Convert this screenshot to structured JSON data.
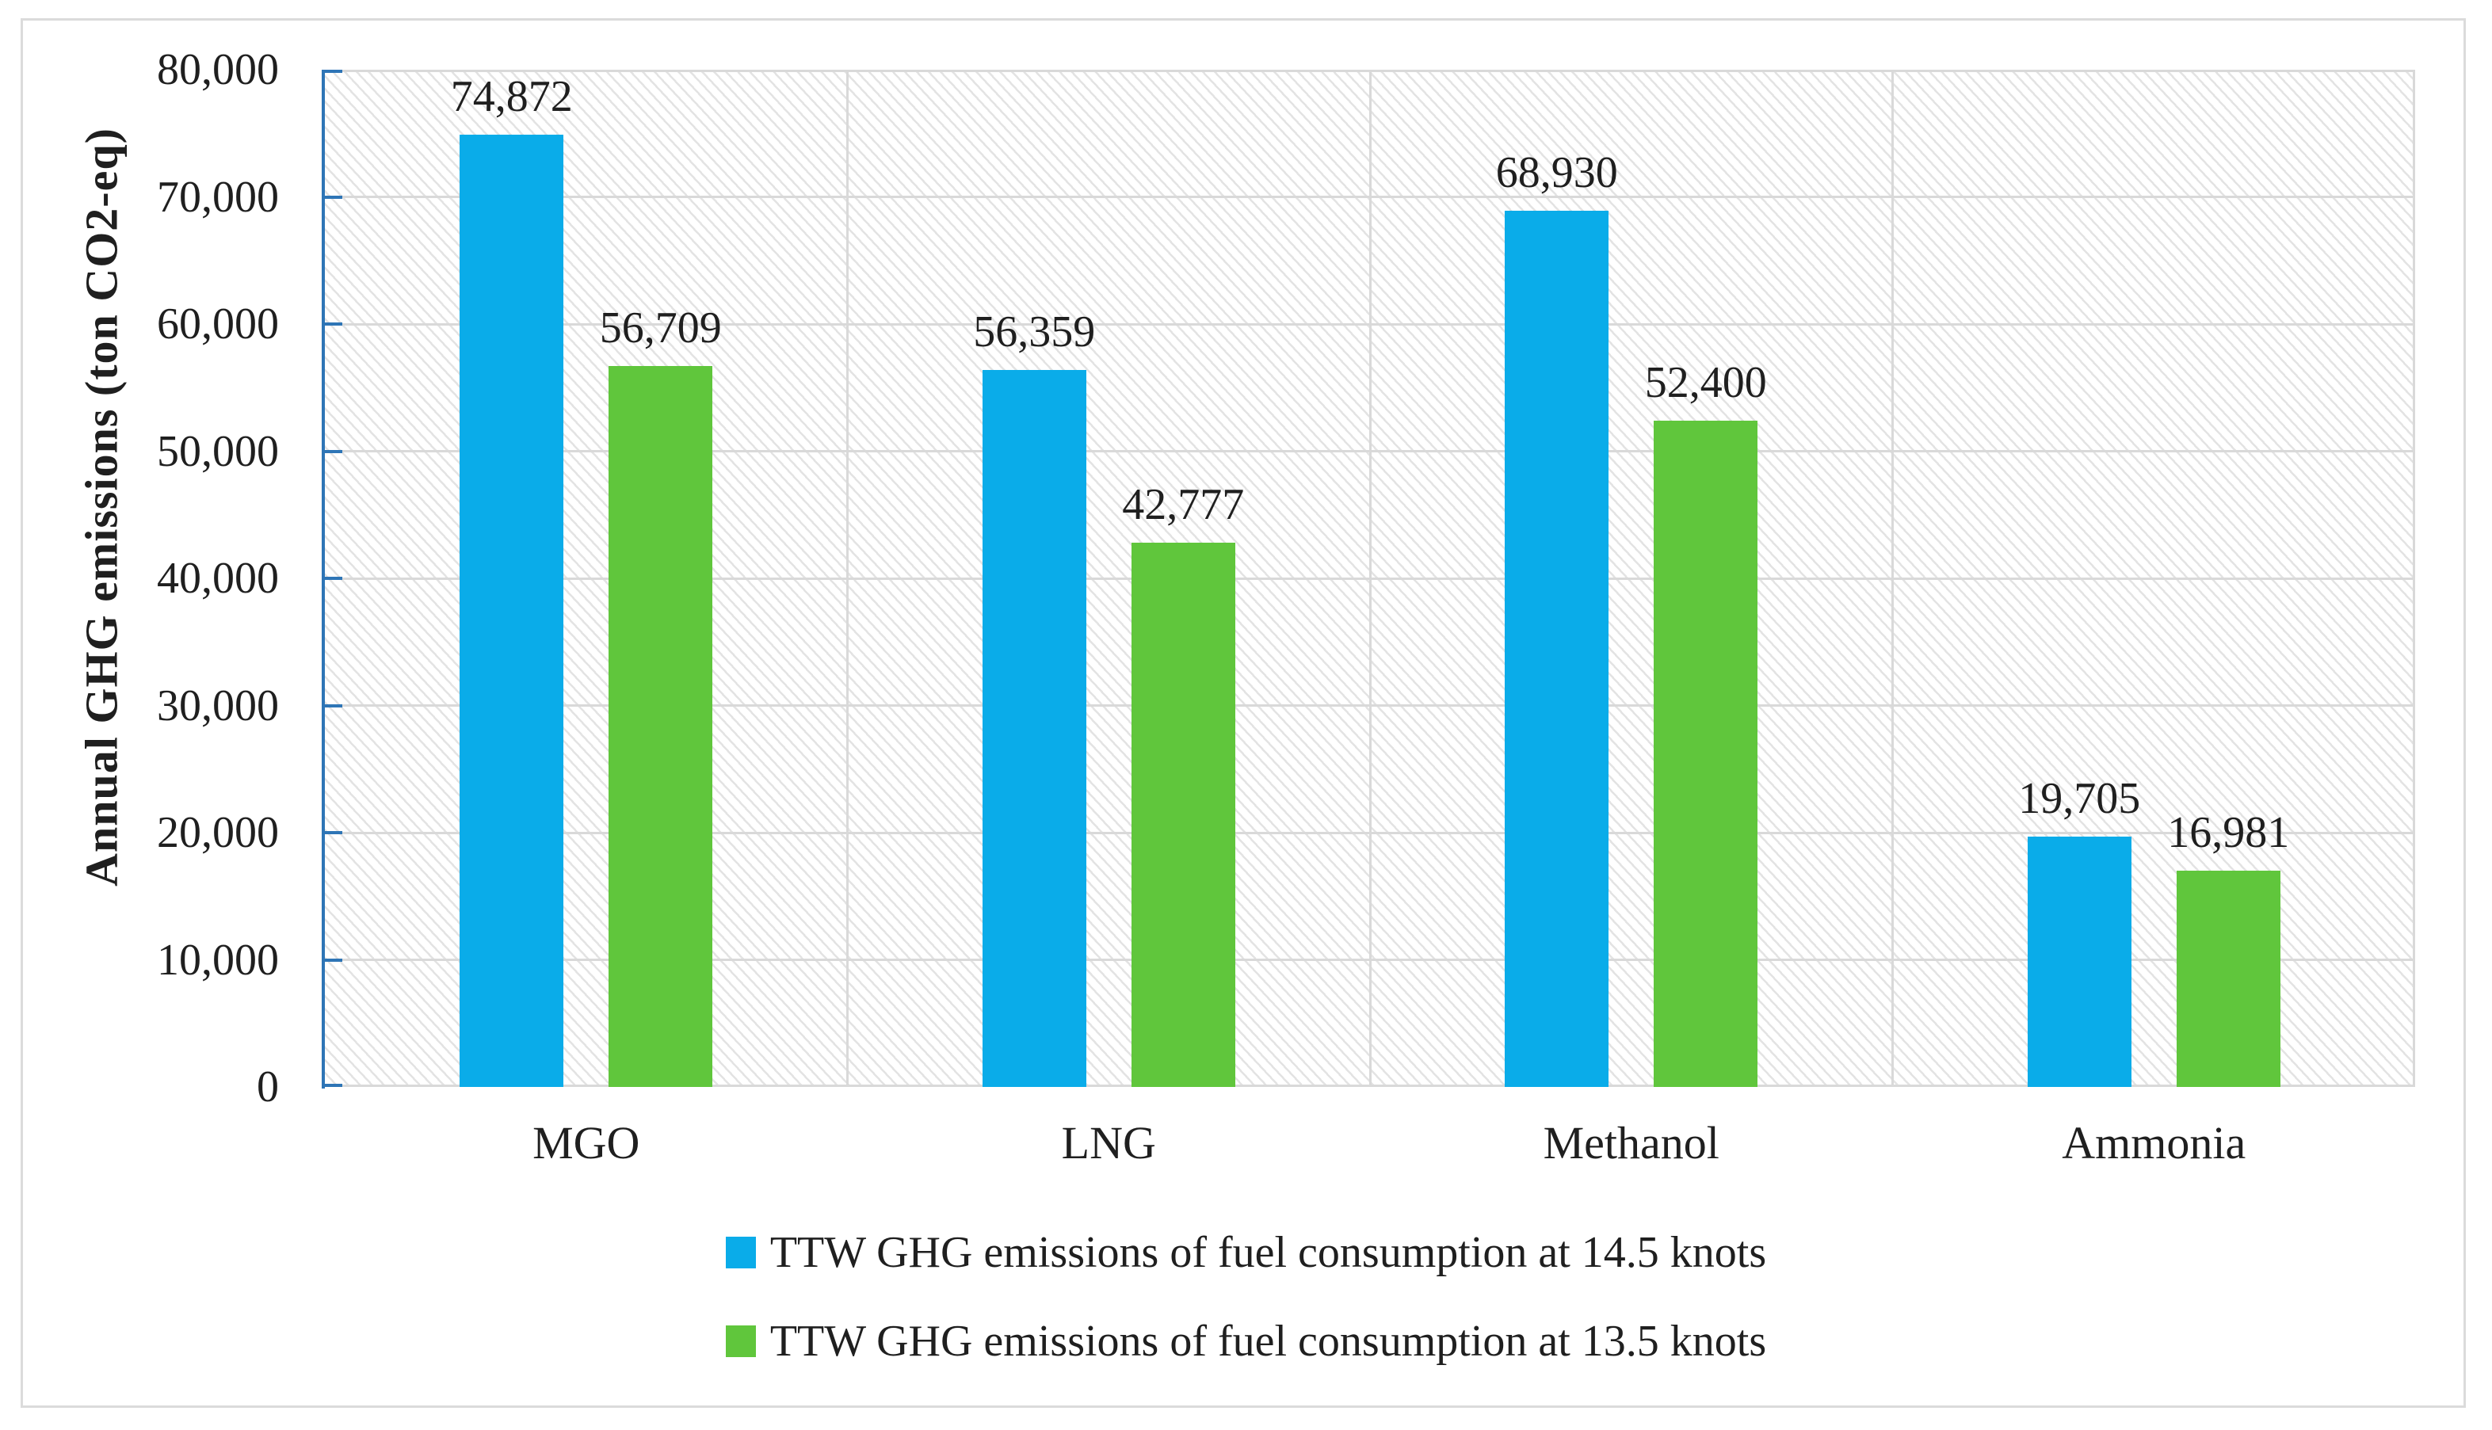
{
  "figure": {
    "background": "#ffffff",
    "border_color": "#dbdbdb"
  },
  "chart_data": {
    "type": "bar",
    "title": "",
    "xlabel": "",
    "ylabel": "Annual GHG emissions (ton CO2-eq)",
    "categories": [
      "MGO",
      "LNG",
      "Methanol",
      "Ammonia"
    ],
    "series": [
      {
        "name": "TTW GHG emissions of fuel consumption at 14.5 knots",
        "color": "#0aace9",
        "values": [
          74872,
          56359,
          68930,
          19705
        ],
        "labels": [
          "74,872",
          "56,359",
          "68,930",
          "19,705"
        ]
      },
      {
        "name": "TTW GHG emissions of fuel consumption at 13.5 knots",
        "color": "#60c63c",
        "values": [
          56709,
          42777,
          52400,
          16981
        ],
        "labels": [
          "56,709",
          "42,777",
          "52,400",
          "16,981"
        ]
      }
    ],
    "ylim": [
      0,
      80000
    ],
    "ytick_step": 10000,
    "yticks": [
      "0",
      "10,000",
      "20,000",
      "30,000",
      "40,000",
      "50,000",
      "60,000",
      "70,000",
      "80,000"
    ],
    "grid": true,
    "plot_fill_pattern": "light-downward-diagonal-hatch",
    "axis_color": "#2e75b6",
    "gridline_color": "#d9d9d9",
    "legend_position": "bottom"
  }
}
